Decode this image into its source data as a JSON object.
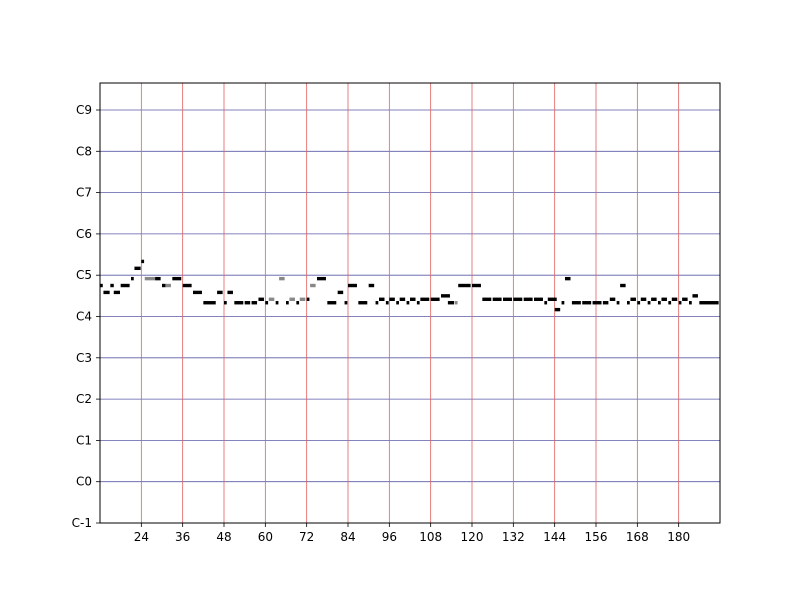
{
  "chart_data": {
    "type": "piano-roll",
    "title": "",
    "xlabel": "",
    "ylabel": "",
    "xlim": [
      12,
      192
    ],
    "ylim": [
      0,
      127
    ],
    "x_ticks": [
      24,
      36,
      48,
      60,
      72,
      84,
      96,
      108,
      120,
      132,
      144,
      156,
      168,
      180
    ],
    "y_ticks": [
      {
        "label": "C-1",
        "pitch": 0
      },
      {
        "label": "C0",
        "pitch": 12
      },
      {
        "label": "C1",
        "pitch": 24
      },
      {
        "label": "C2",
        "pitch": 36
      },
      {
        "label": "C3",
        "pitch": 48
      },
      {
        "label": "C4",
        "pitch": 60
      },
      {
        "label": "C5",
        "pitch": 72
      },
      {
        "label": "C6",
        "pitch": 84
      },
      {
        "label": "C7",
        "pitch": 96
      },
      {
        "label": "C8",
        "pitch": 108
      },
      {
        "label": "C9",
        "pitch": 120
      }
    ],
    "colors": {
      "vertical_grid": "#e06060",
      "horizontal_grid": "#5a5aa8",
      "note_dark": "#000000",
      "note_light": "#888888"
    },
    "notes": [
      {
        "start": 12.0,
        "dur": 0.8,
        "pitch": 69,
        "shade": "dark"
      },
      {
        "start": 13.0,
        "dur": 1.8,
        "pitch": 67,
        "shade": "dark"
      },
      {
        "start": 15.0,
        "dur": 1.0,
        "pitch": 69,
        "shade": "dark"
      },
      {
        "start": 16.0,
        "dur": 1.8,
        "pitch": 67,
        "shade": "dark"
      },
      {
        "start": 18.0,
        "dur": 2.6,
        "pitch": 69,
        "shade": "dark"
      },
      {
        "start": 21.0,
        "dur": 0.8,
        "pitch": 71,
        "shade": "dark"
      },
      {
        "start": 22.0,
        "dur": 1.8,
        "pitch": 74,
        "shade": "dark"
      },
      {
        "start": 24.0,
        "dur": 0.8,
        "pitch": 76,
        "shade": "dark"
      },
      {
        "start": 25.0,
        "dur": 3.0,
        "pitch": 71,
        "shade": "light"
      },
      {
        "start": 28.0,
        "dur": 1.6,
        "pitch": 71,
        "shade": "dark"
      },
      {
        "start": 30.0,
        "dur": 1.0,
        "pitch": 69,
        "shade": "dark"
      },
      {
        "start": 31.0,
        "dur": 1.6,
        "pitch": 69,
        "shade": "light"
      },
      {
        "start": 33.0,
        "dur": 2.6,
        "pitch": 71,
        "shade": "dark"
      },
      {
        "start": 36.0,
        "dur": 2.6,
        "pitch": 69,
        "shade": "dark"
      },
      {
        "start": 39.0,
        "dur": 2.6,
        "pitch": 67,
        "shade": "dark"
      },
      {
        "start": 42.0,
        "dur": 3.6,
        "pitch": 64,
        "shade": "dark"
      },
      {
        "start": 46.0,
        "dur": 1.6,
        "pitch": 67,
        "shade": "dark"
      },
      {
        "start": 48.0,
        "dur": 0.8,
        "pitch": 64,
        "shade": "dark"
      },
      {
        "start": 49.0,
        "dur": 1.6,
        "pitch": 67,
        "shade": "dark"
      },
      {
        "start": 51.0,
        "dur": 2.6,
        "pitch": 64,
        "shade": "dark"
      },
      {
        "start": 54.0,
        "dur": 1.6,
        "pitch": 64,
        "shade": "dark"
      },
      {
        "start": 56.0,
        "dur": 1.6,
        "pitch": 64,
        "shade": "dark"
      },
      {
        "start": 58.0,
        "dur": 1.6,
        "pitch": 65,
        "shade": "dark"
      },
      {
        "start": 60.0,
        "dur": 0.8,
        "pitch": 64,
        "shade": "dark"
      },
      {
        "start": 61.0,
        "dur": 1.6,
        "pitch": 65,
        "shade": "light"
      },
      {
        "start": 63.0,
        "dur": 0.8,
        "pitch": 64,
        "shade": "dark"
      },
      {
        "start": 64.0,
        "dur": 1.6,
        "pitch": 71,
        "shade": "light"
      },
      {
        "start": 66.0,
        "dur": 0.8,
        "pitch": 64,
        "shade": "dark"
      },
      {
        "start": 67.0,
        "dur": 1.6,
        "pitch": 65,
        "shade": "light"
      },
      {
        "start": 69.0,
        "dur": 0.8,
        "pitch": 64,
        "shade": "dark"
      },
      {
        "start": 70.0,
        "dur": 1.6,
        "pitch": 65,
        "shade": "light"
      },
      {
        "start": 72.0,
        "dur": 0.8,
        "pitch": 65,
        "shade": "dark"
      },
      {
        "start": 73.0,
        "dur": 1.6,
        "pitch": 69,
        "shade": "light"
      },
      {
        "start": 75.0,
        "dur": 2.6,
        "pitch": 71,
        "shade": "dark"
      },
      {
        "start": 78.0,
        "dur": 2.6,
        "pitch": 64,
        "shade": "dark"
      },
      {
        "start": 81.0,
        "dur": 1.6,
        "pitch": 67,
        "shade": "dark"
      },
      {
        "start": 83.0,
        "dur": 0.8,
        "pitch": 64,
        "shade": "dark"
      },
      {
        "start": 84.0,
        "dur": 2.6,
        "pitch": 69,
        "shade": "dark"
      },
      {
        "start": 87.0,
        "dur": 2.6,
        "pitch": 64,
        "shade": "dark"
      },
      {
        "start": 90.0,
        "dur": 1.6,
        "pitch": 69,
        "shade": "dark"
      },
      {
        "start": 92.0,
        "dur": 0.8,
        "pitch": 64,
        "shade": "dark"
      },
      {
        "start": 93.0,
        "dur": 1.6,
        "pitch": 65,
        "shade": "dark"
      },
      {
        "start": 95.0,
        "dur": 0.8,
        "pitch": 64,
        "shade": "dark"
      },
      {
        "start": 96.0,
        "dur": 1.6,
        "pitch": 65,
        "shade": "dark"
      },
      {
        "start": 98.0,
        "dur": 0.8,
        "pitch": 64,
        "shade": "dark"
      },
      {
        "start": 99.0,
        "dur": 1.6,
        "pitch": 65,
        "shade": "dark"
      },
      {
        "start": 101.0,
        "dur": 0.8,
        "pitch": 64,
        "shade": "dark"
      },
      {
        "start": 102.0,
        "dur": 1.6,
        "pitch": 65,
        "shade": "dark"
      },
      {
        "start": 104.0,
        "dur": 0.8,
        "pitch": 64,
        "shade": "dark"
      },
      {
        "start": 105.0,
        "dur": 2.6,
        "pitch": 65,
        "shade": "dark"
      },
      {
        "start": 108.0,
        "dur": 2.6,
        "pitch": 65,
        "shade": "dark"
      },
      {
        "start": 111.0,
        "dur": 2.6,
        "pitch": 66,
        "shade": "dark"
      },
      {
        "start": 113.0,
        "dur": 1.8,
        "pitch": 64,
        "shade": "dark"
      },
      {
        "start": 115.0,
        "dur": 0.8,
        "pitch": 64,
        "shade": "light"
      },
      {
        "start": 116.0,
        "dur": 3.6,
        "pitch": 69,
        "shade": "dark"
      },
      {
        "start": 120.0,
        "dur": 2.6,
        "pitch": 69,
        "shade": "dark"
      },
      {
        "start": 123.0,
        "dur": 2.6,
        "pitch": 65,
        "shade": "dark"
      },
      {
        "start": 126.0,
        "dur": 2.6,
        "pitch": 65,
        "shade": "dark"
      },
      {
        "start": 129.0,
        "dur": 2.6,
        "pitch": 65,
        "shade": "dark"
      },
      {
        "start": 132.0,
        "dur": 2.6,
        "pitch": 65,
        "shade": "dark"
      },
      {
        "start": 135.0,
        "dur": 2.6,
        "pitch": 65,
        "shade": "dark"
      },
      {
        "start": 138.0,
        "dur": 2.6,
        "pitch": 65,
        "shade": "dark"
      },
      {
        "start": 141.0,
        "dur": 0.8,
        "pitch": 64,
        "shade": "dark"
      },
      {
        "start": 142.0,
        "dur": 2.6,
        "pitch": 65,
        "shade": "dark"
      },
      {
        "start": 144.0,
        "dur": 1.6,
        "pitch": 62,
        "shade": "dark"
      },
      {
        "start": 146.0,
        "dur": 0.8,
        "pitch": 64,
        "shade": "dark"
      },
      {
        "start": 147.0,
        "dur": 1.6,
        "pitch": 71,
        "shade": "dark"
      },
      {
        "start": 149.0,
        "dur": 2.6,
        "pitch": 64,
        "shade": "dark"
      },
      {
        "start": 152.0,
        "dur": 2.6,
        "pitch": 64,
        "shade": "dark"
      },
      {
        "start": 155.0,
        "dur": 2.6,
        "pitch": 64,
        "shade": "dark"
      },
      {
        "start": 158.0,
        "dur": 1.6,
        "pitch": 64,
        "shade": "dark"
      },
      {
        "start": 160.0,
        "dur": 1.6,
        "pitch": 65,
        "shade": "dark"
      },
      {
        "start": 162.0,
        "dur": 0.8,
        "pitch": 64,
        "shade": "dark"
      },
      {
        "start": 163.0,
        "dur": 1.6,
        "pitch": 69,
        "shade": "dark"
      },
      {
        "start": 165.0,
        "dur": 0.8,
        "pitch": 64,
        "shade": "dark"
      },
      {
        "start": 166.0,
        "dur": 1.6,
        "pitch": 65,
        "shade": "dark"
      },
      {
        "start": 168.0,
        "dur": 0.8,
        "pitch": 64,
        "shade": "dark"
      },
      {
        "start": 169.0,
        "dur": 1.6,
        "pitch": 65,
        "shade": "dark"
      },
      {
        "start": 171.0,
        "dur": 0.8,
        "pitch": 64,
        "shade": "dark"
      },
      {
        "start": 172.0,
        "dur": 1.6,
        "pitch": 65,
        "shade": "dark"
      },
      {
        "start": 174.0,
        "dur": 0.8,
        "pitch": 64,
        "shade": "dark"
      },
      {
        "start": 175.0,
        "dur": 1.6,
        "pitch": 65,
        "shade": "dark"
      },
      {
        "start": 177.0,
        "dur": 0.8,
        "pitch": 64,
        "shade": "dark"
      },
      {
        "start": 178.0,
        "dur": 1.6,
        "pitch": 65,
        "shade": "dark"
      },
      {
        "start": 180.0,
        "dur": 0.8,
        "pitch": 64,
        "shade": "dark"
      },
      {
        "start": 181.0,
        "dur": 1.6,
        "pitch": 65,
        "shade": "dark"
      },
      {
        "start": 183.0,
        "dur": 0.8,
        "pitch": 64,
        "shade": "dark"
      },
      {
        "start": 184.0,
        "dur": 1.6,
        "pitch": 66,
        "shade": "dark"
      },
      {
        "start": 186.0,
        "dur": 5.6,
        "pitch": 64,
        "shade": "dark"
      }
    ]
  }
}
